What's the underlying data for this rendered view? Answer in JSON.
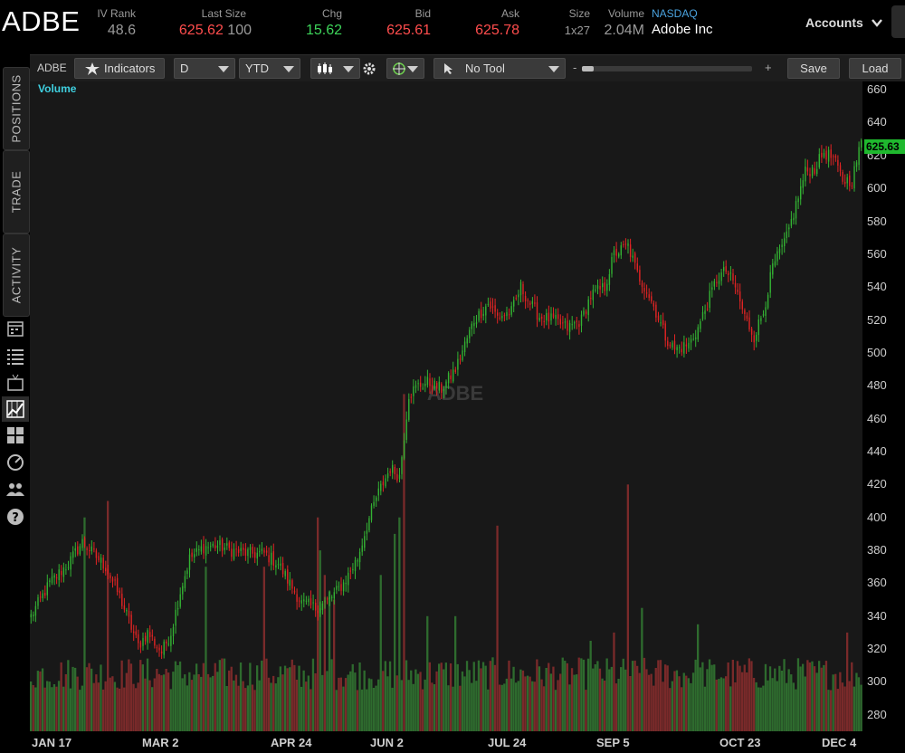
{
  "header": {
    "symbol": "ADBE",
    "iv_rank": {
      "label": "IV Rank",
      "value": "48.6"
    },
    "last_size": {
      "label": "Last Size",
      "price": "625.62",
      "size": "100"
    },
    "chg": {
      "label": "Chg",
      "value": "15.62"
    },
    "bid": {
      "label": "Bid",
      "value": "625.61"
    },
    "ask": {
      "label": "Ask",
      "value": "625.78"
    },
    "size": {
      "label": "Size",
      "value": "1x27"
    },
    "volume": {
      "label": "Volume",
      "value": "2.04M"
    },
    "exchange": {
      "label": "NASDAQ",
      "name": "Adobe Inc"
    },
    "accounts_label": "Accounts"
  },
  "toolbar": {
    "symbol": "ADBE",
    "indicators_label": "Indicators",
    "interval": "D",
    "range": "YTD",
    "tool_label": "No Tool",
    "zoom_minus": "-",
    "zoom_plus": "+",
    "zoom_level": 0.07,
    "save_label": "Save",
    "load_label": "Load"
  },
  "sidebar": {
    "tabs": [
      "POSITIONS",
      "TRADE",
      "ACTIVITY"
    ],
    "icons": [
      "calendar-icon",
      "list-icon",
      "tv-icon",
      "chart-icon",
      "grid-icon",
      "gauge-icon",
      "people-icon",
      "help-icon"
    ]
  },
  "colors": {
    "up": "#33b233",
    "down": "#e02424",
    "vol_up": "#2e6b2e",
    "vol_down": "#7a2a2a",
    "price_tag": "#1fb82e",
    "volume_label": "#3fd0e0"
  },
  "chart_data": {
    "type": "candlestick",
    "symbol": "ADBE",
    "watermark": "ADBE",
    "volume_label": "Volume",
    "last_price": "625.63",
    "y_ticks": [
      "660",
      "640",
      "620",
      "600",
      "580",
      "560",
      "540",
      "520",
      "500",
      "480",
      "460",
      "440",
      "420",
      "400",
      "380",
      "360",
      "340",
      "320",
      "300",
      "280"
    ],
    "ylim": [
      270,
      665
    ],
    "x_labels": [
      "JAN 17",
      "MAR 2",
      "APR 24",
      "JUN 2",
      "JUL 24",
      "SEP 5",
      "OCT 23",
      "DEC 4"
    ],
    "anchors": [
      [
        0,
        340
      ],
      [
        8,
        360
      ],
      [
        16,
        372
      ],
      [
        22,
        385
      ],
      [
        32,
        370
      ],
      [
        38,
        352
      ],
      [
        42,
        337
      ],
      [
        46,
        322
      ],
      [
        50,
        330
      ],
      [
        56,
        318
      ],
      [
        60,
        330
      ],
      [
        64,
        355
      ],
      [
        68,
        375
      ],
      [
        74,
        382
      ],
      [
        80,
        383
      ],
      [
        86,
        380
      ],
      [
        94,
        378
      ],
      [
        100,
        378
      ],
      [
        106,
        372
      ],
      [
        110,
        362
      ],
      [
        116,
        348
      ],
      [
        122,
        345
      ],
      [
        128,
        350
      ],
      [
        134,
        360
      ],
      [
        140,
        375
      ],
      [
        144,
        395
      ],
      [
        148,
        412
      ],
      [
        154,
        430
      ],
      [
        158,
        425
      ],
      [
        162,
        475
      ],
      [
        166,
        480
      ],
      [
        170,
        482
      ],
      [
        176,
        478
      ],
      [
        182,
        490
      ],
      [
        186,
        505
      ],
      [
        190,
        520
      ],
      [
        196,
        530
      ],
      [
        200,
        522
      ],
      [
        206,
        525
      ],
      [
        210,
        540
      ],
      [
        214,
        530
      ],
      [
        218,
        522
      ],
      [
        224,
        520
      ],
      [
        230,
        515
      ],
      [
        236,
        520
      ],
      [
        240,
        535
      ],
      [
        246,
        540
      ],
      [
        250,
        560
      ],
      [
        256,
        565
      ],
      [
        260,
        548
      ],
      [
        264,
        538
      ],
      [
        268,
        525
      ],
      [
        272,
        510
      ],
      [
        276,
        502
      ],
      [
        282,
        505
      ],
      [
        286,
        515
      ],
      [
        290,
        530
      ],
      [
        294,
        545
      ],
      [
        298,
        550
      ],
      [
        302,
        540
      ],
      [
        306,
        522
      ],
      [
        310,
        510
      ],
      [
        314,
        525
      ],
      [
        318,
        552
      ],
      [
        324,
        570
      ],
      [
        328,
        590
      ],
      [
        332,
        610
      ],
      [
        336,
        612
      ],
      [
        340,
        622
      ],
      [
        344,
        618
      ],
      [
        348,
        605
      ],
      [
        352,
        605
      ],
      [
        356,
        628
      ]
    ],
    "volume_spikes": [
      [
        23,
        "up",
        400
      ],
      [
        33,
        "down",
        410
      ],
      [
        36,
        "up",
        300
      ],
      [
        75,
        "up",
        370
      ],
      [
        100,
        "down",
        370
      ],
      [
        123,
        "down",
        400
      ],
      [
        124,
        "up",
        380
      ],
      [
        126,
        "down",
        365
      ],
      [
        128,
        "up",
        355
      ],
      [
        130,
        "down",
        350
      ],
      [
        150,
        "up",
        365
      ],
      [
        156,
        "up",
        390
      ],
      [
        158,
        "up",
        400
      ],
      [
        160,
        "down",
        475
      ],
      [
        170,
        "up",
        340
      ],
      [
        182,
        "up",
        340
      ],
      [
        200,
        "down",
        395
      ],
      [
        240,
        "up",
        325
      ],
      [
        256,
        "down",
        420
      ],
      [
        250,
        "down",
        330
      ],
      [
        262,
        "up",
        345
      ],
      [
        286,
        "up",
        335
      ],
      [
        350,
        "down",
        330
      ]
    ]
  }
}
